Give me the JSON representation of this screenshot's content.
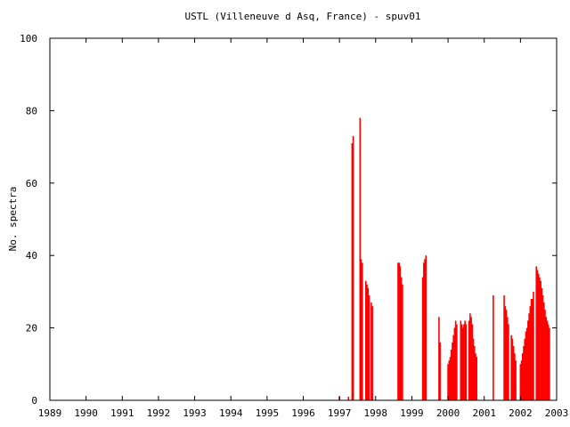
{
  "chart_data": {
    "type": "bar",
    "title": "USTL (Villeneuve d Asq, France) - spuv01",
    "xlabel": "",
    "ylabel": "No. spectra",
    "xlim": [
      1989,
      2003
    ],
    "ylim": [
      0,
      100
    ],
    "x_ticks": [
      "1989",
      "1990",
      "1991",
      "1992",
      "1993",
      "1994",
      "1995",
      "1996",
      "1997",
      "1998",
      "1999",
      "2000",
      "2001",
      "2002",
      "2003"
    ],
    "y_ticks": [
      "0",
      "20",
      "40",
      "60",
      "80",
      "100"
    ],
    "bar_color": "#ff0000",
    "grid": false,
    "series": [
      {
        "values": [
          [
            1997.0,
            1
          ],
          [
            1997.25,
            1
          ],
          [
            1997.35,
            71
          ],
          [
            1997.38,
            73
          ],
          [
            1997.57,
            78
          ],
          [
            1997.6,
            39
          ],
          [
            1997.63,
            38
          ],
          [
            1997.73,
            33
          ],
          [
            1997.76,
            32
          ],
          [
            1997.79,
            31
          ],
          [
            1997.82,
            29
          ],
          [
            1997.88,
            27
          ],
          [
            1997.91,
            26
          ],
          [
            1998.62,
            38
          ],
          [
            1998.65,
            38
          ],
          [
            1998.68,
            37
          ],
          [
            1998.71,
            34
          ],
          [
            1998.74,
            32
          ],
          [
            1999.3,
            34
          ],
          [
            1999.33,
            38
          ],
          [
            1999.36,
            39
          ],
          [
            1999.39,
            40
          ],
          [
            1999.75,
            23
          ],
          [
            1999.78,
            16
          ],
          [
            2000.0,
            10
          ],
          [
            2000.03,
            11
          ],
          [
            2000.06,
            12
          ],
          [
            2000.09,
            14
          ],
          [
            2000.12,
            16
          ],
          [
            2000.15,
            18
          ],
          [
            2000.18,
            20
          ],
          [
            2000.21,
            22
          ],
          [
            2000.24,
            21
          ],
          [
            2000.35,
            22
          ],
          [
            2000.38,
            21
          ],
          [
            2000.41,
            20
          ],
          [
            2000.44,
            21
          ],
          [
            2000.47,
            22
          ],
          [
            2000.5,
            21
          ],
          [
            2000.58,
            22
          ],
          [
            2000.61,
            24
          ],
          [
            2000.64,
            23
          ],
          [
            2000.67,
            21
          ],
          [
            2000.7,
            17
          ],
          [
            2000.73,
            15
          ],
          [
            2000.76,
            13
          ],
          [
            2000.79,
            12
          ],
          [
            2001.25,
            29
          ],
          [
            2001.55,
            29
          ],
          [
            2001.58,
            26
          ],
          [
            2001.61,
            25
          ],
          [
            2001.64,
            23
          ],
          [
            2001.67,
            21
          ],
          [
            2001.75,
            18
          ],
          [
            2001.78,
            17
          ],
          [
            2001.81,
            15
          ],
          [
            2001.84,
            13
          ],
          [
            2001.87,
            11
          ],
          [
            2002.0,
            10
          ],
          [
            2002.03,
            11
          ],
          [
            2002.06,
            13
          ],
          [
            2002.09,
            15
          ],
          [
            2002.12,
            17
          ],
          [
            2002.15,
            19
          ],
          [
            2002.18,
            20
          ],
          [
            2002.21,
            22
          ],
          [
            2002.24,
            24
          ],
          [
            2002.27,
            26
          ],
          [
            2002.3,
            28
          ],
          [
            2002.33,
            28
          ],
          [
            2002.36,
            30
          ],
          [
            2002.44,
            37
          ],
          [
            2002.47,
            36
          ],
          [
            2002.5,
            35
          ],
          [
            2002.53,
            34
          ],
          [
            2002.56,
            33
          ],
          [
            2002.59,
            31
          ],
          [
            2002.62,
            29
          ],
          [
            2002.65,
            27
          ],
          [
            2002.68,
            25
          ],
          [
            2002.71,
            23
          ],
          [
            2002.74,
            22
          ],
          [
            2002.77,
            21
          ],
          [
            2002.8,
            20
          ]
        ]
      }
    ]
  }
}
